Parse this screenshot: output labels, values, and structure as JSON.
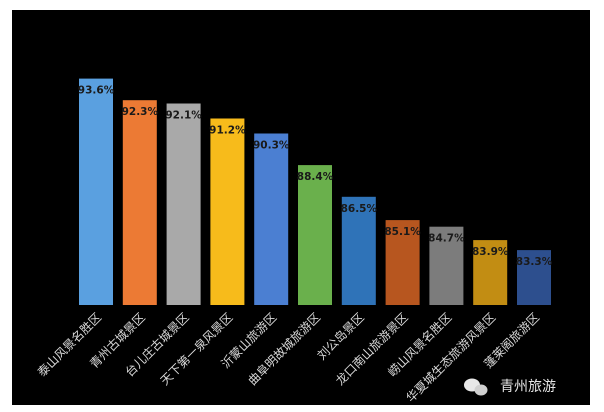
{
  "chart_data": {
    "type": "bar",
    "title": "",
    "xlabel": "",
    "ylabel": "",
    "ylim": [
      80,
      95
    ],
    "grid": false,
    "legend": "none",
    "categories": [
      "泰山风景名胜区",
      "青州古城景区",
      "台儿庄古城景区",
      "天下第一泉风景区",
      "沂蒙山旅游区",
      "曲阜明故城旅游区",
      "刘公岛景区",
      "龙口南山旅游景区",
      "崂山风景名胜区",
      "华夏城生态旅游风景区",
      "蓬莱阁旅游区"
    ],
    "values": [
      93.6,
      92.3,
      92.1,
      91.2,
      90.3,
      88.4,
      86.5,
      85.1,
      84.7,
      83.9,
      83.3
    ],
    "value_labels": [
      "93.6%",
      "92.3%",
      "92.1%",
      "91.2%",
      "90.3%",
      "88.4%",
      "86.5%",
      "85.1%",
      "84.7%",
      "83.9%",
      "83.3%"
    ],
    "colors": [
      "#5aa0e0",
      "#ec7a34",
      "#a9a9a9",
      "#f7bb1b",
      "#4b7fd2",
      "#6ab04c",
      "#2f73b8",
      "#b7561f",
      "#7c7c7c",
      "#c28d13",
      "#2d4f8e"
    ]
  },
  "watermark": {
    "text": "青州旅游"
  }
}
